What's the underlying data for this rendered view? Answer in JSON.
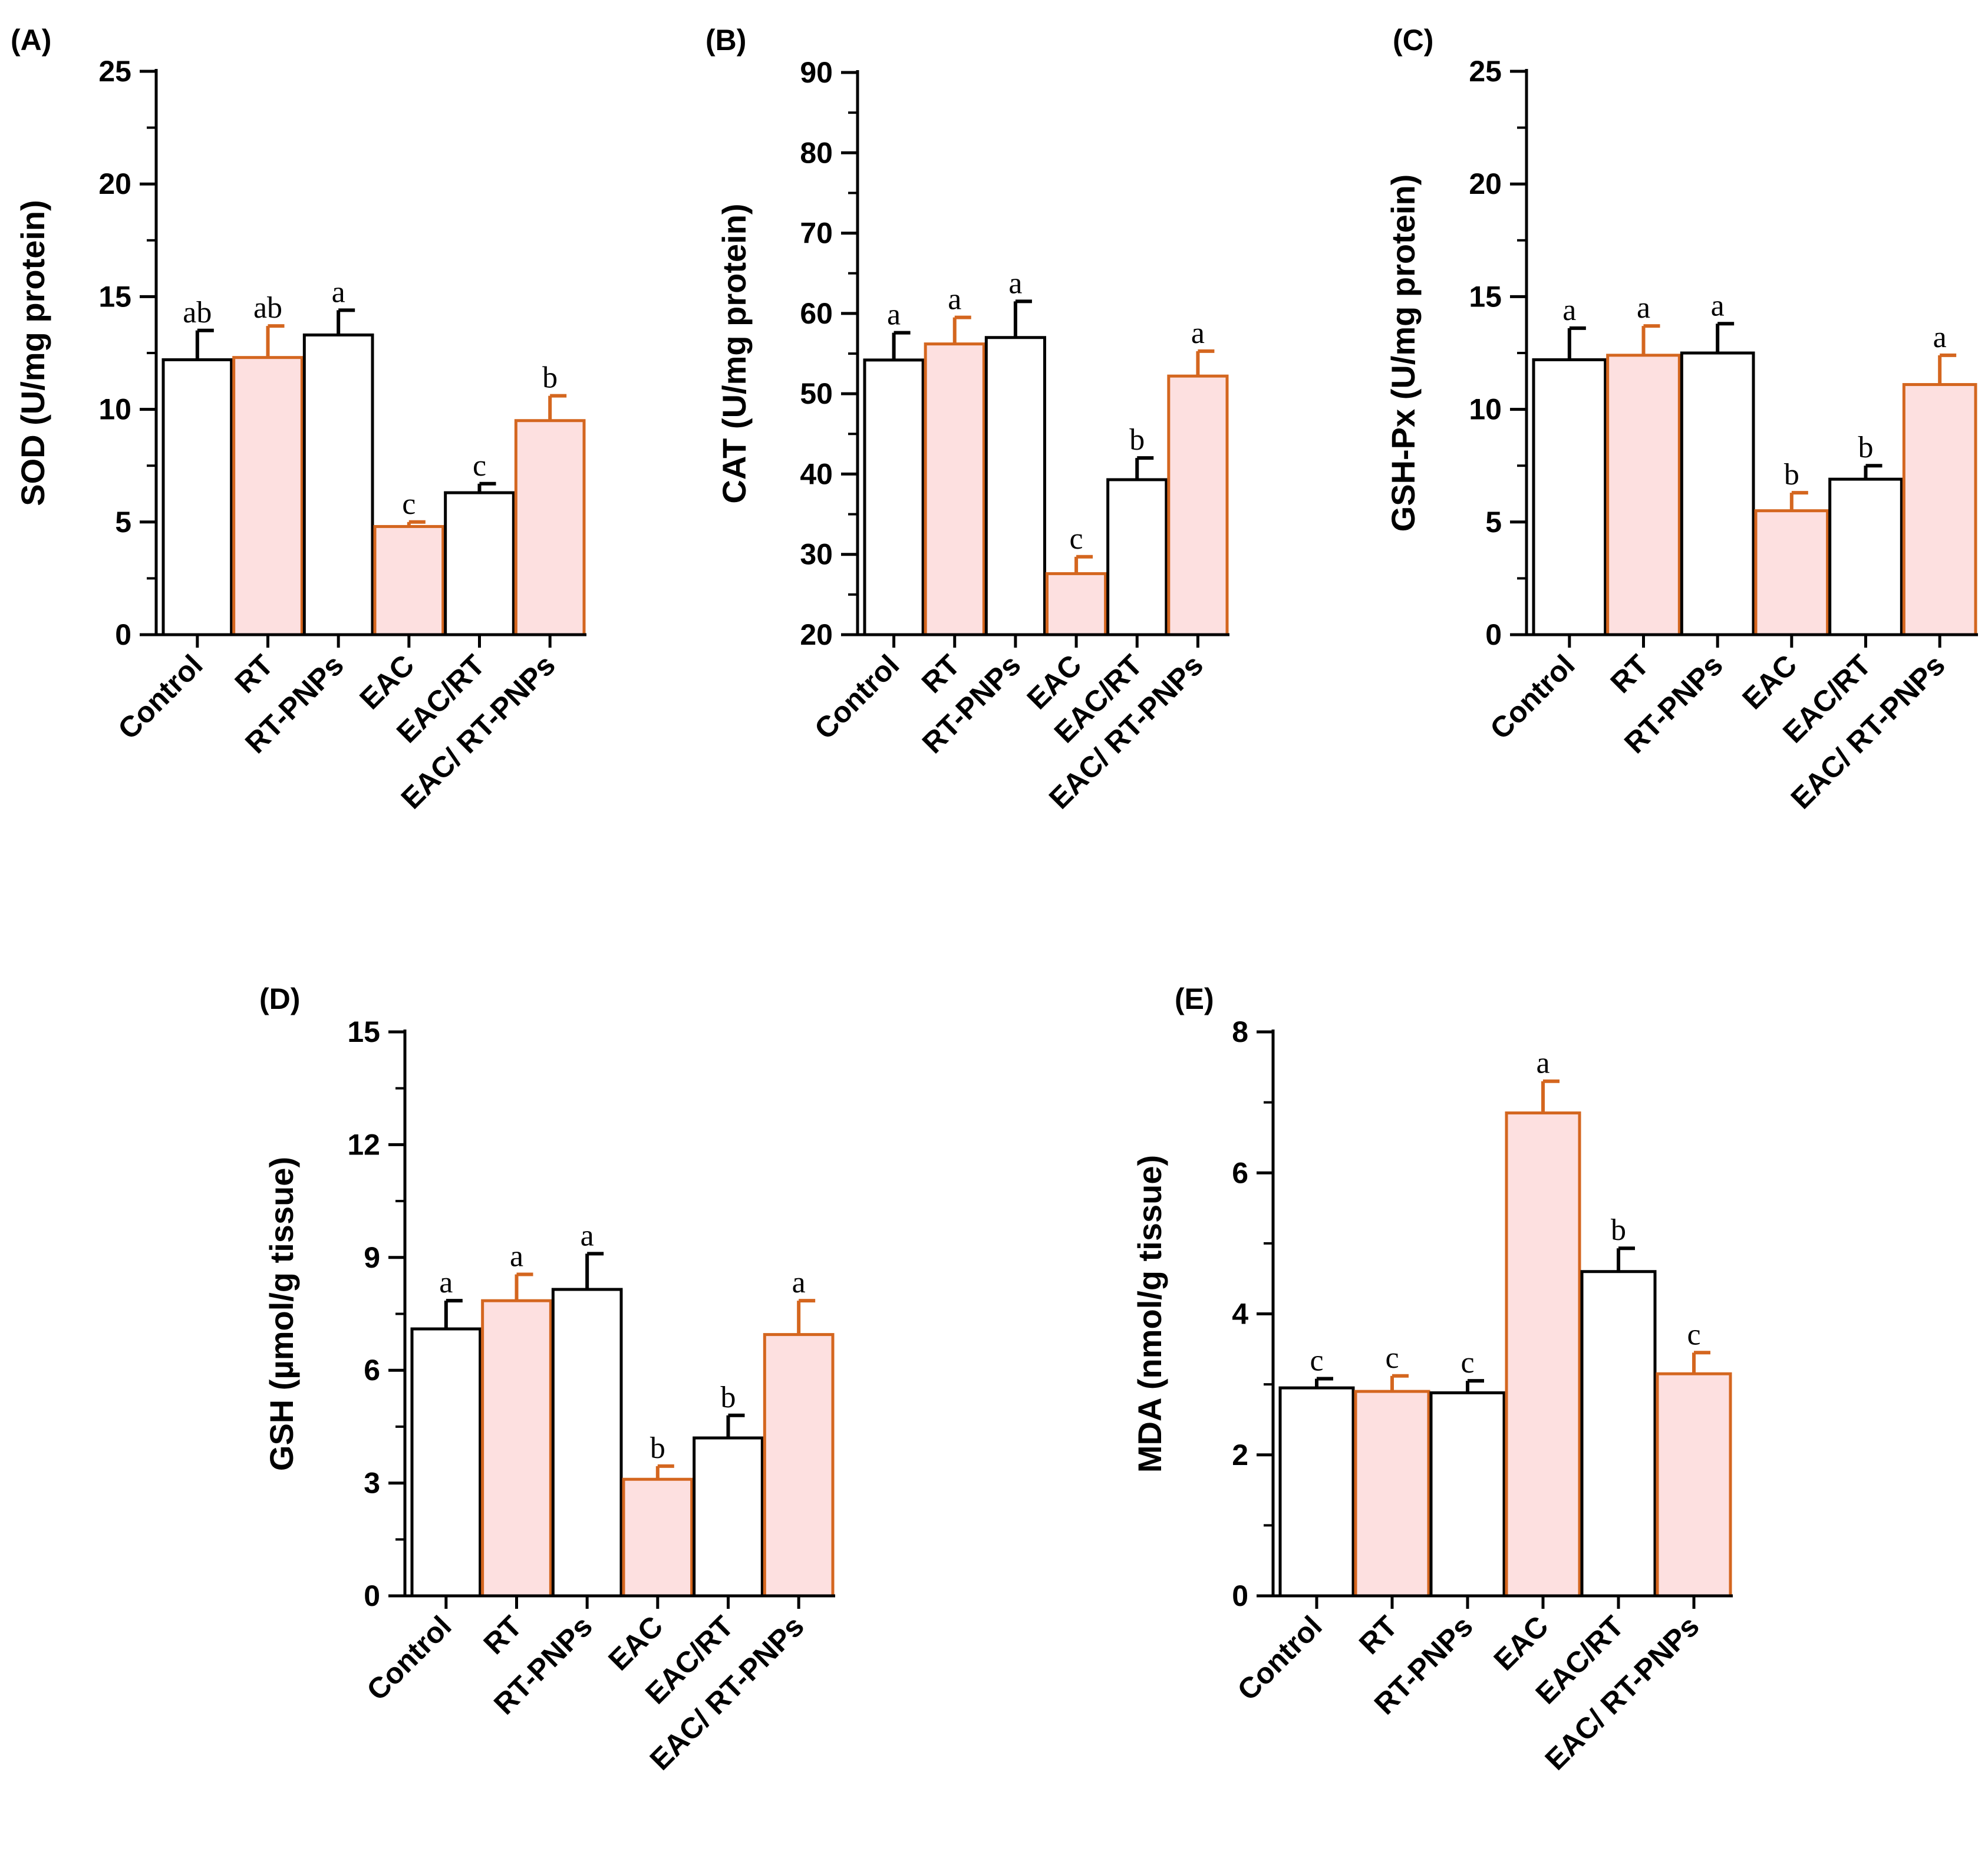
{
  "chart_data": [
    {
      "type": "bar",
      "panel_label": "(A)",
      "ylabel": "SOD (U/mg protein)",
      "categories": [
        "Control",
        "RT",
        "RT-PNPs",
        "EAC",
        "EAC/RT",
        "EAC/ RT-PNPs"
      ],
      "values": [
        12.2,
        12.3,
        13.3,
        4.8,
        6.3,
        9.5
      ],
      "errors": [
        1.3,
        1.4,
        1.1,
        0.2,
        0.4,
        1.1
      ],
      "letters": [
        "ab",
        "ab",
        "a",
        "c",
        "c",
        "b"
      ],
      "ylim": [
        0,
        25
      ],
      "yticks": [
        "0",
        "5",
        "10",
        "15",
        "20",
        "25"
      ],
      "styles": [
        "white",
        "pink",
        "white",
        "pink",
        "white",
        "pink"
      ]
    },
    {
      "type": "bar",
      "panel_label": "(B)",
      "ylabel": "CAT (U/mg protein)",
      "categories": [
        "Control",
        "RT",
        "RT-PNPs",
        "EAC",
        "EAC/RT",
        "EAC/ RT-PNPs"
      ],
      "values": [
        54.2,
        56.2,
        57.0,
        27.6,
        39.3,
        52.2
      ],
      "errors": [
        3.4,
        3.3,
        4.5,
        2.1,
        2.7,
        3.1
      ],
      "letters": [
        "a",
        "a",
        "a",
        "c",
        "b",
        "a"
      ],
      "ylim": [
        20,
        90
      ],
      "yticks": [
        "20",
        "30",
        "40",
        "50",
        "60",
        "70",
        "80",
        "90"
      ],
      "styles": [
        "white",
        "pink",
        "white",
        "pink",
        "white",
        "pink"
      ]
    },
    {
      "type": "bar",
      "panel_label": "(C)",
      "ylabel": "GSH-Px (U/mg protein)",
      "categories": [
        "Control",
        "RT",
        "RT-PNPs",
        "EAC",
        "EAC/RT",
        "EAC/ RT-PNPs"
      ],
      "values": [
        12.2,
        12.4,
        12.5,
        5.5,
        6.9,
        11.1
      ],
      "errors": [
        1.4,
        1.3,
        1.3,
        0.8,
        0.6,
        1.3
      ],
      "letters": [
        "a",
        "a",
        "a",
        "b",
        "b",
        "a"
      ],
      "ylim": [
        0,
        25
      ],
      "yticks": [
        "0",
        "5",
        "10",
        "15",
        "20",
        "25"
      ],
      "styles": [
        "white",
        "pink",
        "white",
        "pink",
        "white",
        "pink"
      ]
    },
    {
      "type": "bar",
      "panel_label": "(D)",
      "ylabel": "GSH (µmol/g tissue)",
      "categories": [
        "Control",
        "RT",
        "RT-PNPs",
        "EAC",
        "EAC/RT",
        "EAC/ RT-PNPs"
      ],
      "values": [
        7.1,
        7.85,
        8.15,
        3.1,
        4.2,
        6.95
      ],
      "errors": [
        0.75,
        0.7,
        0.95,
        0.35,
        0.6,
        0.9
      ],
      "letters": [
        "a",
        "a",
        "a",
        "b",
        "b",
        "a"
      ],
      "ylim": [
        0,
        15
      ],
      "yticks": [
        "0",
        "3",
        "6",
        "9",
        "12",
        "15"
      ],
      "styles": [
        "white",
        "pink",
        "white",
        "pink",
        "white",
        "pink"
      ]
    },
    {
      "type": "bar",
      "panel_label": "(E)",
      "ylabel": "MDA (nmol/g tissue)",
      "categories": [
        "Control",
        "RT",
        "RT-PNPs",
        "EAC",
        "EAC/RT",
        "EAC/ RT-PNPs"
      ],
      "values": [
        2.95,
        2.9,
        2.88,
        6.85,
        4.6,
        3.15
      ],
      "errors": [
        0.13,
        0.22,
        0.17,
        0.45,
        0.33,
        0.3
      ],
      "letters": [
        "c",
        "c",
        "c",
        "a",
        "b",
        "c"
      ],
      "ylim": [
        0,
        8
      ],
      "yticks": [
        "0",
        "2",
        "4",
        "6",
        "8"
      ],
      "styles": [
        "white",
        "pink",
        "white",
        "pink",
        "white",
        "pink"
      ]
    }
  ],
  "colors": {
    "white_fill": "#ffffff",
    "white_stroke": "#000000",
    "pink_fill": "#fde0e0",
    "pink_stroke": "#d4661f",
    "axis": "#000000"
  }
}
